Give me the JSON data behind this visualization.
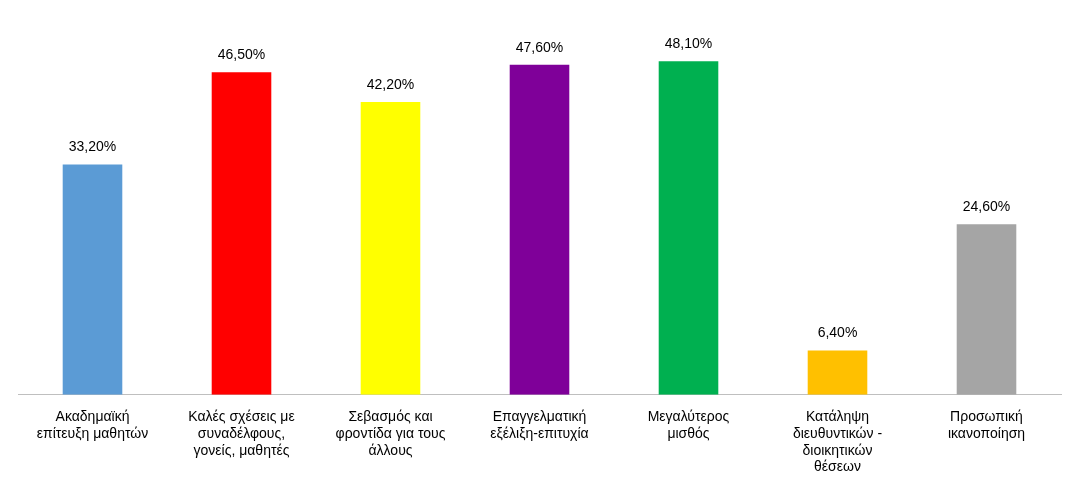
{
  "chart_data": {
    "type": "bar",
    "categories": [
      "Ακαδημαϊκή επίτευξη μαθητών",
      "Καλές σχέσεις με συναδέλφους, γονείς, μαθητές",
      "Σεβασμός και φροντίδα για τους άλλους",
      "Επαγγελματική εξέλιξη-επιτυχία",
      "Μεγαλύτερος μισθός",
      "Κατάληψη διευθυντικών - διοικητικών θέσεων",
      "Προσωπική ικανοποίηση"
    ],
    "values": [
      33.2,
      46.5,
      42.2,
      47.6,
      48.1,
      6.4,
      24.6
    ],
    "colors": [
      "#5b9bd5",
      "#ff0000",
      "#ffff00",
      "#7f0099",
      "#00b050",
      "#ffc000",
      "#a5a5a5"
    ],
    "value_labels": [
      "33,20%",
      "46,50%",
      "42,20%",
      "47,60%",
      "48,10%",
      "6,40%",
      "24,60%"
    ],
    "grid": false,
    "legend": false
  }
}
